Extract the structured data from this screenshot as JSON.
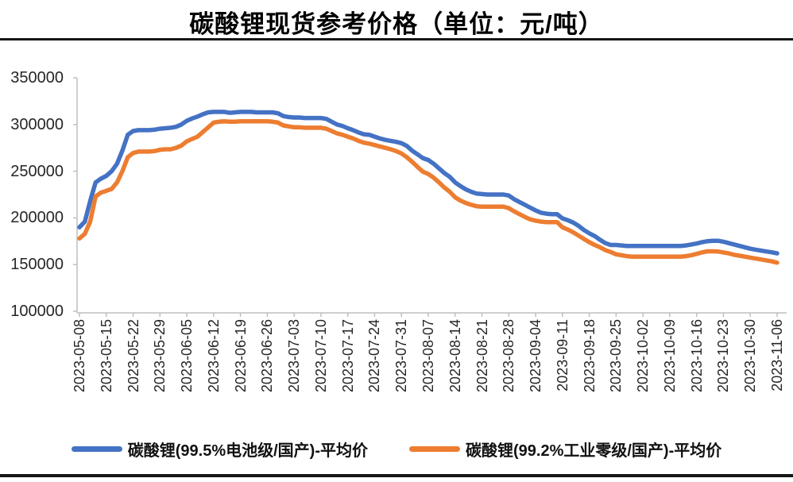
{
  "title": "碳酸锂现货参考价格（单位：元/吨）",
  "axis_color": "#BFBFBF",
  "text_color": "#262626",
  "chart_data": {
    "type": "line",
    "title": "碳酸锂现货参考价格（单位：元/吨）",
    "unit": "元/吨",
    "grid": false,
    "legend_position": "bottom",
    "ylim": [
      100000,
      350000
    ],
    "y_ticks": [
      350000,
      300000,
      250000,
      200000,
      150000,
      100000
    ],
    "points_per_tick": 5,
    "x_tick_labels": [
      "2023-05-08",
      "2023-05-15",
      "2023-05-22",
      "2023-05-29",
      "2023-06-05",
      "2023-06-12",
      "2023-06-19",
      "2023-06-26",
      "2023-07-03",
      "2023-07-10",
      "2023-07-17",
      "2023-07-24",
      "2023-07-31",
      "2023-08-07",
      "2023-08-14",
      "2023-08-21",
      "2023-08-28",
      "2023-09-04",
      "2023-09-11",
      "2023-09-18",
      "2023-09-25",
      "2023-10-02",
      "2023-10-09",
      "2023-10-16",
      "2023-10-23",
      "2023-10-30",
      "2023-11-06"
    ],
    "series": [
      {
        "name": "碳酸锂(99.5%电池级/国产)-平均价",
        "color": "#4472C4",
        "values": [
          190000,
          196000,
          218000,
          238000,
          242000,
          245000,
          250000,
          258000,
          272000,
          289000,
          293000,
          294000,
          294000,
          294000,
          294500,
          295500,
          296000,
          296500,
          297500,
          300000,
          304000,
          306500,
          308500,
          311000,
          313000,
          313500,
          313500,
          313500,
          312500,
          313000,
          313500,
          313500,
          313500,
          313000,
          313000,
          313000,
          313000,
          312000,
          309000,
          308000,
          307500,
          307500,
          307000,
          307000,
          307000,
          307000,
          306000,
          303000,
          300000,
          298500,
          296000,
          294000,
          291500,
          289500,
          289000,
          287000,
          285000,
          283500,
          282500,
          281500,
          280000,
          277000,
          272000,
          268000,
          264000,
          262000,
          258000,
          253000,
          248000,
          244000,
          238000,
          234000,
          230500,
          228000,
          226000,
          225500,
          225000,
          225000,
          225000,
          225000,
          224000,
          220000,
          217000,
          214000,
          211000,
          208000,
          205500,
          204500,
          204000,
          204000,
          199500,
          197500,
          195000,
          191500,
          187000,
          183500,
          180500,
          176500,
          173000,
          171000,
          171000,
          170500,
          170000,
          170000,
          170000,
          170000,
          170000,
          170000,
          170000,
          170000,
          170000,
          170000,
          170000,
          170500,
          171500,
          172500,
          174000,
          175000,
          175500,
          175500,
          174500,
          173000,
          171500,
          170000,
          168500,
          167000,
          166000,
          165000,
          164000,
          163200,
          162000
        ]
      },
      {
        "name": "碳酸锂(99.2%工业零级/国产)-平均价",
        "color": "#ED7D31",
        "values": [
          178000,
          183000,
          196000,
          223000,
          227000,
          229000,
          231000,
          238000,
          250000,
          265000,
          269500,
          271000,
          271000,
          271000,
          271500,
          273000,
          273500,
          273500,
          275000,
          277500,
          282000,
          284500,
          287000,
          292000,
          297000,
          302000,
          303000,
          303500,
          303000,
          303000,
          303500,
          303500,
          303500,
          303500,
          303500,
          303500,
          303000,
          302000,
          299000,
          298000,
          297000,
          297000,
          296500,
          296500,
          296500,
          296500,
          295500,
          293000,
          290500,
          289000,
          287000,
          285000,
          282500,
          280500,
          279500,
          278000,
          276500,
          275000,
          273500,
          271500,
          269000,
          265000,
          260000,
          254500,
          249500,
          247000,
          243000,
          238000,
          232500,
          228000,
          222000,
          218500,
          216000,
          214000,
          212500,
          212000,
          212000,
          212000,
          212000,
          212000,
          210500,
          207000,
          204000,
          201000,
          198500,
          197000,
          196000,
          195500,
          195500,
          195500,
          190000,
          187500,
          184500,
          181000,
          177500,
          174000,
          171000,
          168500,
          165500,
          163500,
          161000,
          160000,
          159000,
          158500,
          158500,
          158500,
          158500,
          158500,
          158500,
          158500,
          158500,
          158500,
          158500,
          159000,
          160000,
          161500,
          163000,
          164200,
          164200,
          164000,
          163000,
          162000,
          160500,
          159500,
          158500,
          157500,
          156500,
          155500,
          154500,
          153500,
          152000
        ]
      }
    ]
  }
}
